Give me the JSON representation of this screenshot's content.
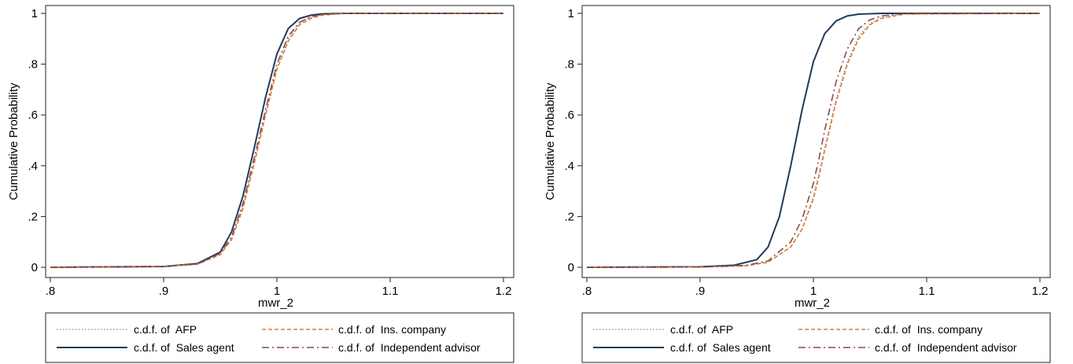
{
  "chart_data": [
    {
      "type": "line",
      "title": "",
      "xlabel": "mwr_2",
      "ylabel": "Cumulative Probability",
      "xlim": [
        0.8,
        1.2
      ],
      "ylim": [
        0,
        1
      ],
      "x_ticks": [
        ".8",
        ".9",
        "1",
        "1.1",
        "1.2"
      ],
      "y_ticks": [
        "0",
        ".2",
        ".4",
        ".6",
        ".8",
        "1"
      ],
      "grid": false,
      "legend_position": "bottom",
      "series": [
        {
          "name": "c.d.f. of  AFP",
          "style": "dotted",
          "color": "#9a9a9a",
          "x": [
            0.8,
            0.9,
            0.93,
            0.95,
            0.96,
            0.97,
            0.98,
            0.99,
            1.0,
            1.01,
            1.02,
            1.03,
            1.04,
            1.06,
            1.2
          ],
          "y": [
            0,
            0.003,
            0.012,
            0.05,
            0.11,
            0.24,
            0.41,
            0.6,
            0.78,
            0.9,
            0.96,
            0.985,
            0.995,
            1,
            1
          ]
        },
        {
          "name": "c.d.f. of  Sales agent",
          "style": "solid",
          "color": "#1f3b5c",
          "x": [
            0.8,
            0.9,
            0.93,
            0.95,
            0.96,
            0.97,
            0.98,
            0.99,
            1.0,
            1.01,
            1.02,
            1.03,
            1.04,
            1.06,
            1.2
          ],
          "y": [
            0,
            0.003,
            0.015,
            0.06,
            0.14,
            0.28,
            0.47,
            0.67,
            0.84,
            0.94,
            0.98,
            0.993,
            0.998,
            1,
            1
          ]
        },
        {
          "name": "c.d.f. of  Ins. company",
          "style": "dashed",
          "color": "#e07a30",
          "x": [
            0.8,
            0.9,
            0.93,
            0.95,
            0.96,
            0.97,
            0.98,
            0.99,
            1.0,
            1.01,
            1.02,
            1.03,
            1.04,
            1.06,
            1.2
          ],
          "y": [
            0,
            0.003,
            0.012,
            0.05,
            0.11,
            0.23,
            0.41,
            0.6,
            0.78,
            0.89,
            0.955,
            0.98,
            0.993,
            1,
            1
          ]
        },
        {
          "name": "c.d.f. of  Independent advisor",
          "style": "dashdot",
          "color": "#8a4a4a",
          "x": [
            0.8,
            0.9,
            0.93,
            0.95,
            0.96,
            0.97,
            0.98,
            0.99,
            1.0,
            1.01,
            1.02,
            1.03,
            1.04,
            1.06,
            1.2
          ],
          "y": [
            0,
            0.003,
            0.013,
            0.055,
            0.12,
            0.25,
            0.43,
            0.62,
            0.8,
            0.91,
            0.965,
            0.987,
            0.996,
            1,
            1
          ]
        }
      ]
    },
    {
      "type": "line",
      "title": "",
      "xlabel": "mwr_2",
      "ylabel": "Cumulative Probability",
      "xlim": [
        0.8,
        1.2
      ],
      "ylim": [
        0,
        1
      ],
      "x_ticks": [
        ".8",
        ".9",
        "1",
        "1.1",
        "1.2"
      ],
      "y_ticks": [
        "0",
        ".2",
        ".4",
        ".6",
        ".8",
        "1"
      ],
      "grid": false,
      "legend_position": "bottom",
      "series": [
        {
          "name": "c.d.f. of  AFP",
          "style": "dotted",
          "color": "#9a9a9a",
          "x": [
            0.8,
            0.9,
            0.94,
            0.96,
            0.98,
            0.99,
            1.0,
            1.005,
            1.01,
            1.02,
            1.03,
            1.04,
            1.05,
            1.06,
            1.08,
            1.2
          ],
          "y": [
            0,
            0.001,
            0.006,
            0.02,
            0.08,
            0.15,
            0.28,
            0.37,
            0.47,
            0.66,
            0.81,
            0.91,
            0.96,
            0.985,
            0.998,
            1
          ]
        },
        {
          "name": "c.d.f. of  Sales agent",
          "style": "solid",
          "color": "#1f3b5c",
          "x": [
            0.8,
            0.9,
            0.93,
            0.95,
            0.96,
            0.97,
            0.98,
            0.99,
            1.0,
            1.01,
            1.02,
            1.03,
            1.04,
            1.06,
            1.2
          ],
          "y": [
            0,
            0.002,
            0.008,
            0.03,
            0.08,
            0.2,
            0.4,
            0.62,
            0.81,
            0.92,
            0.97,
            0.99,
            0.997,
            1,
            1
          ]
        },
        {
          "name": "c.d.f. of  Ins. company",
          "style": "dashed",
          "color": "#e07a30",
          "x": [
            0.8,
            0.9,
            0.94,
            0.96,
            0.98,
            0.99,
            1.0,
            1.005,
            1.01,
            1.02,
            1.03,
            1.04,
            1.05,
            1.06,
            1.08,
            1.2
          ],
          "y": [
            0,
            0.001,
            0.006,
            0.02,
            0.08,
            0.15,
            0.27,
            0.36,
            0.46,
            0.65,
            0.8,
            0.9,
            0.955,
            0.98,
            0.997,
            1
          ]
        },
        {
          "name": "c.d.f. of  Independent advisor",
          "style": "dashdot",
          "color": "#8a4a4a",
          "x": [
            0.8,
            0.9,
            0.94,
            0.96,
            0.98,
            0.99,
            1.0,
            1.005,
            1.01,
            1.02,
            1.03,
            1.04,
            1.05,
            1.06,
            1.08,
            1.2
          ],
          "y": [
            0,
            0.001,
            0.007,
            0.025,
            0.1,
            0.19,
            0.33,
            0.43,
            0.54,
            0.73,
            0.86,
            0.94,
            0.975,
            0.99,
            0.999,
            1
          ]
        }
      ]
    }
  ]
}
